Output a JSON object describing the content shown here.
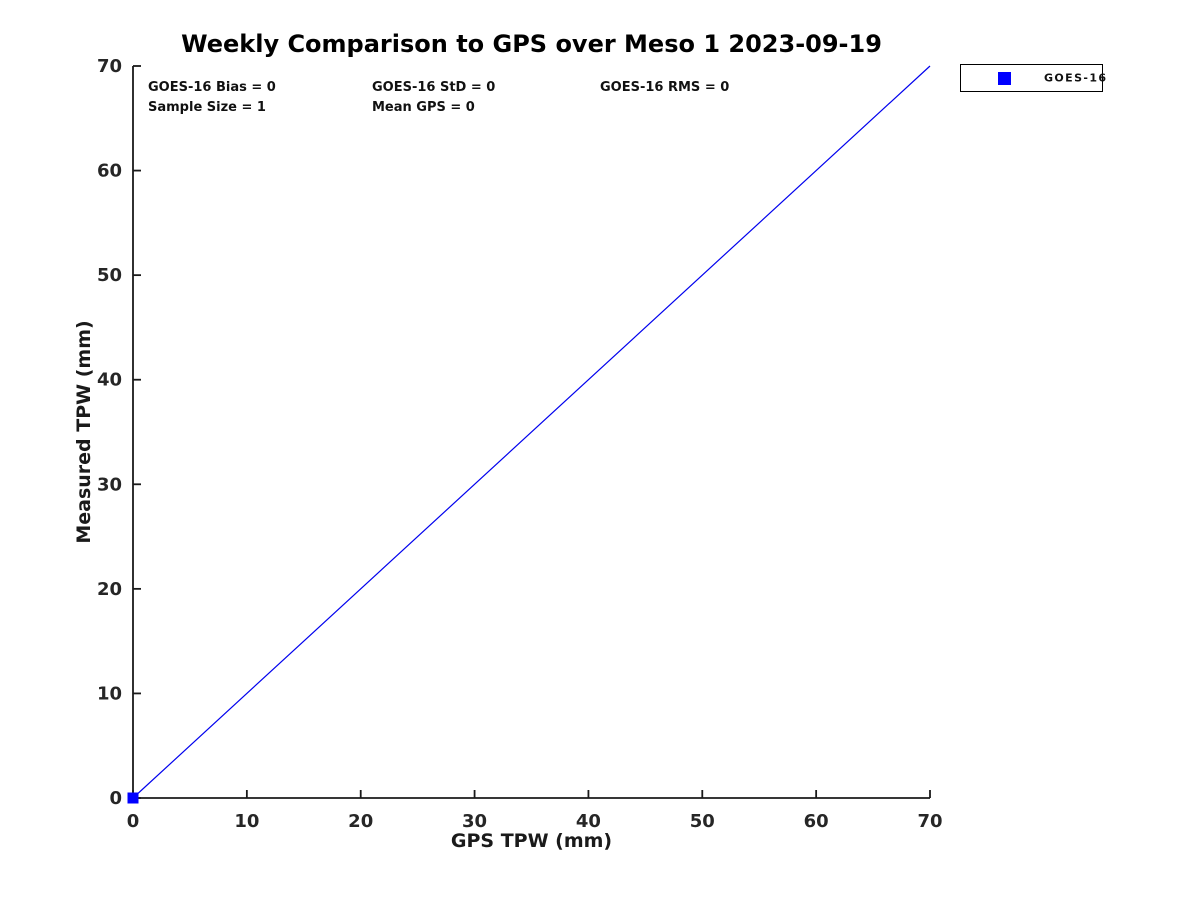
{
  "page": {
    "background": "#ffffff"
  },
  "chart_data": {
    "type": "scatter",
    "title": "Weekly Comparison to GPS over Meso 1 2023-09-19",
    "xlabel": "GPS TPW (mm)",
    "ylabel": "Measured TPW (mm)",
    "xlim": [
      0,
      70
    ],
    "ylim": [
      0,
      70
    ],
    "xticks": [
      0,
      10,
      20,
      30,
      40,
      50,
      60,
      70
    ],
    "yticks": [
      0,
      10,
      20,
      30,
      40,
      50,
      60,
      70
    ],
    "grid": false,
    "legend": {
      "position": "outside-top-right",
      "entries": [
        {
          "label": "GOES-16",
          "marker": "filled-square",
          "color": "#0000ff"
        }
      ]
    },
    "series": [
      {
        "name": "GOES-16",
        "type": "scatter",
        "marker": "filled-square",
        "marker_size": 11,
        "color": "#0000ff",
        "points": [
          [
            0,
            0
          ]
        ]
      }
    ],
    "reference_line": {
      "x": [
        0,
        70
      ],
      "y": [
        0,
        70
      ],
      "color": "#0000ee",
      "width": 1.2
    },
    "annotations": [
      {
        "text": "GOES-16 Bias = 0"
      },
      {
        "text": "GOES-16 StD = 0"
      },
      {
        "text": "GOES-16 RMS = 0"
      },
      {
        "text": "Sample Size = 1"
      },
      {
        "text": "Mean GPS = 0"
      }
    ],
    "colors": {
      "spine": "#1a1a1a",
      "tick_label": "#262626",
      "axis_label": "#1a1a1a",
      "title": "#000000",
      "background": "#ffffff"
    }
  }
}
